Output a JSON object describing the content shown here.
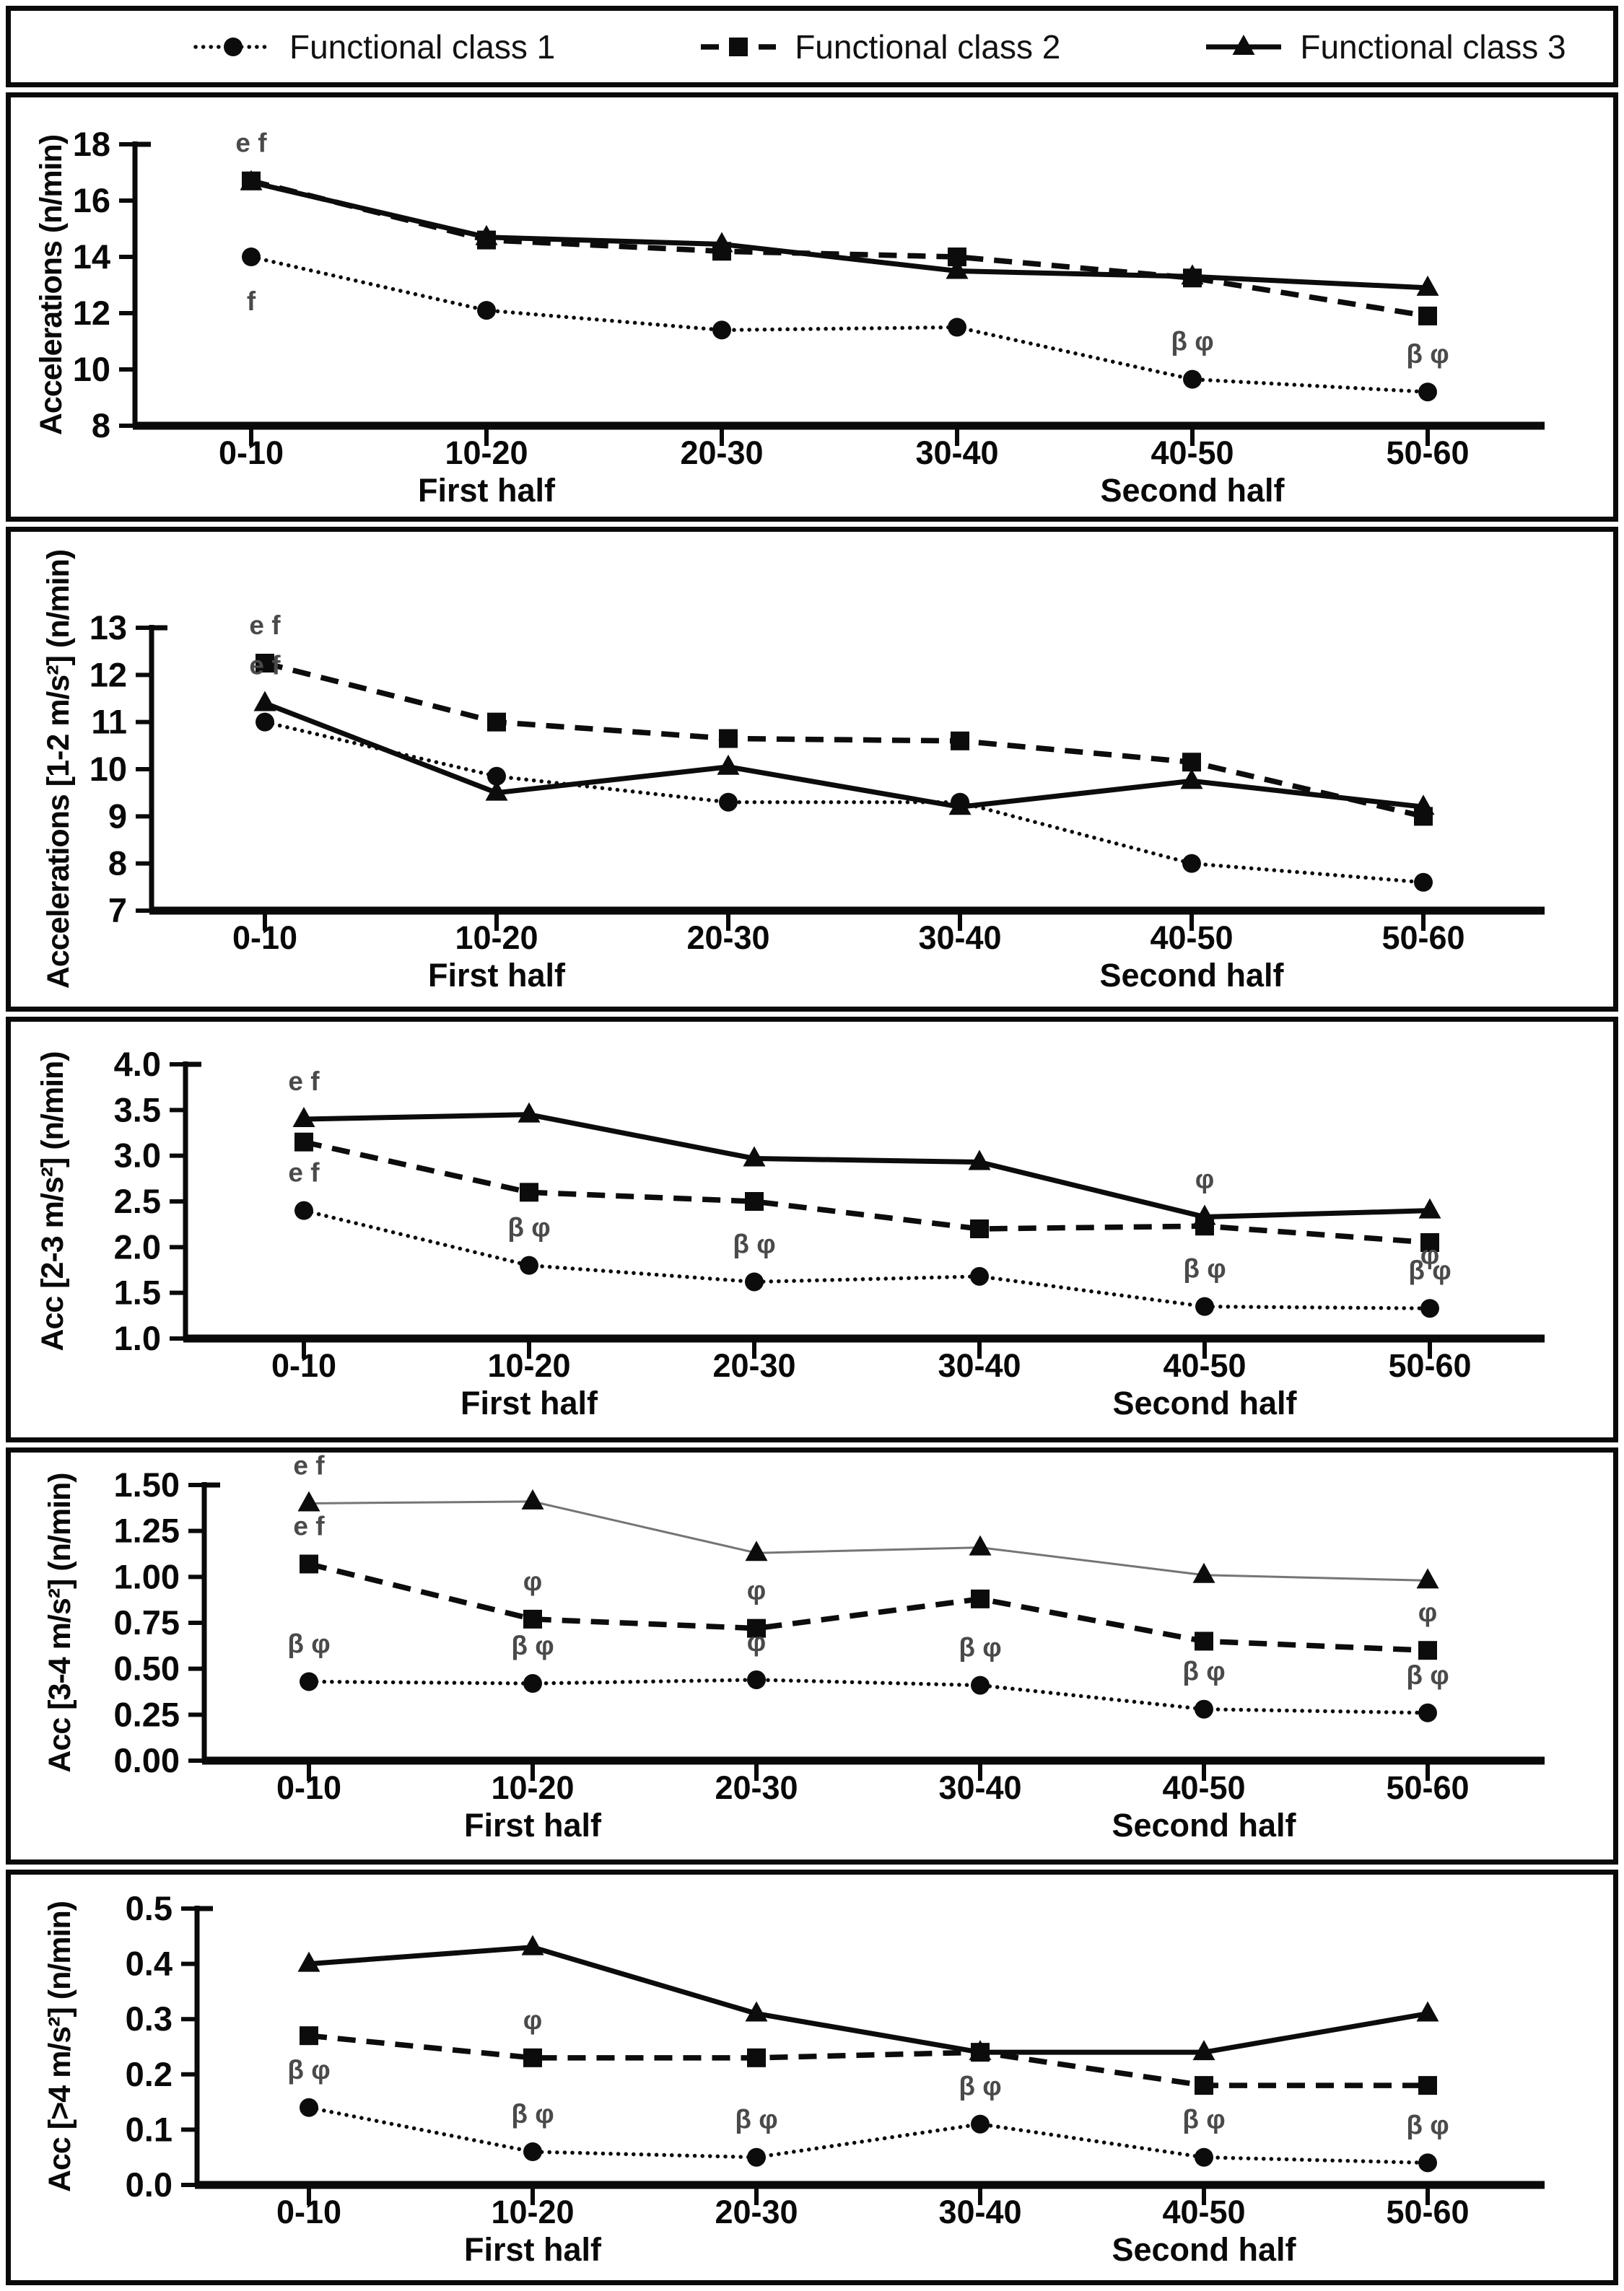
{
  "legend": {
    "items": [
      {
        "label": "Functional class 1",
        "marker": "circle",
        "line": "dotted"
      },
      {
        "label": "Functional class 2",
        "marker": "square",
        "line": "dashed"
      },
      {
        "label": "Functional class 3",
        "marker": "triangle",
        "line": "solid"
      }
    ]
  },
  "chart_data": [
    {
      "type": "line",
      "title": "",
      "ylabel": "Accelerations (n/min)",
      "ylim": [
        8,
        18
      ],
      "ytick_step": 2,
      "yticks": [
        "8",
        "10",
        "12",
        "14",
        "16",
        "18"
      ],
      "grid": false,
      "legend_position": "top-outside",
      "categories": [
        "0-10",
        "10-20",
        "20-30",
        "30-40",
        "40-50",
        "50-60"
      ],
      "xlabel_first": "First half",
      "xlabel_second": "Second half",
      "series": [
        {
          "name": "Functional class 1",
          "marker": "circle",
          "line": "dotted",
          "values": [
            14.0,
            12.1,
            11.4,
            11.5,
            9.65,
            9.2
          ]
        },
        {
          "name": "Functional class 2",
          "marker": "square",
          "line": "dashed",
          "values": [
            16.7,
            14.6,
            14.2,
            14.0,
            13.25,
            11.9
          ]
        },
        {
          "name": "Functional class 3",
          "marker": "triangle",
          "line": "solid",
          "values": [
            16.65,
            14.7,
            14.45,
            13.5,
            13.3,
            12.9
          ]
        }
      ],
      "annotations": [
        {
          "series": 1,
          "index": 0,
          "text": "e f",
          "pos": "above"
        },
        {
          "series": 0,
          "index": 0,
          "text": "f",
          "pos": "below"
        },
        {
          "series": 0,
          "index": 4,
          "text": "β φ",
          "pos": "above"
        },
        {
          "series": 0,
          "index": 5,
          "text": "β φ",
          "pos": "above"
        }
      ]
    },
    {
      "type": "line",
      "title": "",
      "ylabel": "Accelerations [1-2 m/s²] (n/min)",
      "ylim": [
        7,
        13
      ],
      "ytick_step": 1,
      "yticks": [
        "7",
        "8",
        "9",
        "10",
        "11",
        "12",
        "13"
      ],
      "grid": false,
      "legend_position": "top-outside",
      "categories": [
        "0-10",
        "10-20",
        "20-30",
        "30-40",
        "40-50",
        "50-60"
      ],
      "xlabel_first": "First half",
      "xlabel_second": "Second half",
      "series": [
        {
          "name": "Functional class 1",
          "marker": "circle",
          "line": "dotted",
          "values": [
            11.0,
            9.85,
            9.3,
            9.3,
            8.0,
            7.6
          ]
        },
        {
          "name": "Functional class 2",
          "marker": "square",
          "line": "dashed",
          "values": [
            12.25,
            11.0,
            10.65,
            10.6,
            10.15,
            9.0
          ]
        },
        {
          "name": "Functional class 3",
          "marker": "triangle",
          "line": "solid",
          "values": [
            11.4,
            9.5,
            10.05,
            9.2,
            9.75,
            9.2
          ]
        }
      ],
      "annotations": [
        {
          "series": 1,
          "index": 0,
          "text": "e f",
          "pos": "above"
        },
        {
          "series": 2,
          "index": 0,
          "text": "e f",
          "pos": "above"
        }
      ]
    },
    {
      "type": "line",
      "title": "",
      "ylabel": "Acc [2-3 m/s²] (n/min)",
      "ylim": [
        1.0,
        4.0
      ],
      "ytick_step": 0.5,
      "yticks": [
        "1.0",
        "1.5",
        "2.0",
        "2.5",
        "3.0",
        "3.5",
        "4.0"
      ],
      "grid": false,
      "legend_position": "top-outside",
      "categories": [
        "0-10",
        "10-20",
        "20-30",
        "30-40",
        "40-50",
        "50-60"
      ],
      "xlabel_first": "First half",
      "xlabel_second": "Second half",
      "series": [
        {
          "name": "Functional class 1",
          "marker": "circle",
          "line": "dotted",
          "values": [
            2.4,
            1.8,
            1.62,
            1.68,
            1.35,
            1.33
          ]
        },
        {
          "name": "Functional class 2",
          "marker": "square",
          "line": "dashed",
          "values": [
            3.15,
            2.6,
            2.5,
            2.2,
            2.23,
            2.05
          ]
        },
        {
          "name": "Functional class 3",
          "marker": "triangle",
          "line": "solid",
          "values": [
            3.4,
            3.45,
            2.97,
            2.93,
            2.33,
            2.4
          ]
        }
      ],
      "annotations": [
        {
          "series": 2,
          "index": 0,
          "text": "e f",
          "pos": "above"
        },
        {
          "series": 0,
          "index": 0,
          "text": "e f",
          "pos": "above"
        },
        {
          "series": 0,
          "index": 1,
          "text": "β φ",
          "pos": "above"
        },
        {
          "series": 0,
          "index": 2,
          "text": "β φ",
          "pos": "above"
        },
        {
          "series": 2,
          "index": 4,
          "text": "φ",
          "pos": "above"
        },
        {
          "series": 0,
          "index": 4,
          "text": "β φ",
          "pos": "above"
        },
        {
          "series": 0,
          "index": 5,
          "text": "β φ",
          "pos": "above"
        },
        {
          "series": 2,
          "index": 5,
          "text": "φ",
          "pos": "below"
        }
      ]
    },
    {
      "type": "line",
      "title": "",
      "ylabel": "Acc [3-4 m/s²] (n/min)",
      "ylim": [
        0.0,
        1.5
      ],
      "ytick_step": 0.25,
      "yticks": [
        "0.00",
        "0.25",
        "0.50",
        "0.75",
        "1.00",
        "1.25",
        "1.50"
      ],
      "grid": false,
      "legend_position": "top-outside",
      "categories": [
        "0-10",
        "10-20",
        "20-30",
        "30-40",
        "40-50",
        "50-60"
      ],
      "xlabel_first": "First half",
      "xlabel_second": "Second half",
      "series": [
        {
          "name": "Functional class 1",
          "marker": "circle",
          "line": "dotted",
          "values": [
            0.43,
            0.42,
            0.44,
            0.41,
            0.28,
            0.26
          ]
        },
        {
          "name": "Functional class 2",
          "marker": "square",
          "line": "dashed",
          "values": [
            1.07,
            0.77,
            0.72,
            0.88,
            0.65,
            0.6
          ]
        },
        {
          "name": "Functional class 3",
          "marker": "triangle",
          "line": "solid",
          "values": [
            1.4,
            1.41,
            1.13,
            1.16,
            1.01,
            0.98
          ],
          "color": "#757575",
          "line_width": 3
        }
      ],
      "annotations": [
        {
          "series": 2,
          "index": 0,
          "text": "e f",
          "pos": "above"
        },
        {
          "series": 1,
          "index": 0,
          "text": "e f",
          "pos": "above"
        },
        {
          "series": 1,
          "index": 1,
          "text": "φ",
          "pos": "above"
        },
        {
          "series": 1,
          "index": 2,
          "text": "φ",
          "pos": "above"
        },
        {
          "series": 1,
          "index": 5,
          "text": "φ",
          "pos": "above"
        },
        {
          "series": 0,
          "index": 0,
          "text": "β φ",
          "pos": "above"
        },
        {
          "series": 0,
          "index": 1,
          "text": "β φ",
          "pos": "above"
        },
        {
          "series": 0,
          "index": 2,
          "text": "φ",
          "pos": "above"
        },
        {
          "series": 0,
          "index": 3,
          "text": "β φ",
          "pos": "above"
        },
        {
          "series": 0,
          "index": 4,
          "text": "β φ",
          "pos": "above"
        },
        {
          "series": 0,
          "index": 5,
          "text": "β φ",
          "pos": "above"
        }
      ]
    },
    {
      "type": "line",
      "title": "",
      "ylabel": "Acc [>4 m/s²] (n/min)",
      "ylim": [
        0.0,
        0.5
      ],
      "ytick_step": 0.1,
      "yticks": [
        "0.0",
        "0.1",
        "0.2",
        "0.3",
        "0.4",
        "0.5"
      ],
      "grid": false,
      "legend_position": "top-outside",
      "categories": [
        "0-10",
        "10-20",
        "20-30",
        "30-40",
        "40-50",
        "50-60"
      ],
      "xlabel_first": "First half",
      "xlabel_second": "Second half",
      "series": [
        {
          "name": "Functional class 1",
          "marker": "circle",
          "line": "dotted",
          "values": [
            0.14,
            0.06,
            0.05,
            0.11,
            0.05,
            0.04
          ]
        },
        {
          "name": "Functional class 2",
          "marker": "square",
          "line": "dashed",
          "values": [
            0.27,
            0.23,
            0.23,
            0.24,
            0.18,
            0.18
          ]
        },
        {
          "name": "Functional class 3",
          "marker": "triangle",
          "line": "solid",
          "values": [
            0.4,
            0.43,
            0.31,
            0.24,
            0.24,
            0.31
          ]
        }
      ],
      "annotations": [
        {
          "series": 1,
          "index": 1,
          "text": "φ",
          "pos": "above"
        },
        {
          "series": 0,
          "index": 0,
          "text": "β φ",
          "pos": "above"
        },
        {
          "series": 0,
          "index": 1,
          "text": "β φ",
          "pos": "above"
        },
        {
          "series": 0,
          "index": 2,
          "text": "β φ",
          "pos": "above"
        },
        {
          "series": 0,
          "index": 3,
          "text": "β φ",
          "pos": "above"
        },
        {
          "series": 0,
          "index": 4,
          "text": "β φ",
          "pos": "above"
        },
        {
          "series": 0,
          "index": 5,
          "text": "β φ",
          "pos": "above"
        }
      ]
    }
  ],
  "colors": {
    "line_default": "#0c0c0c",
    "annotation": "#4a4a4a",
    "axis": "#0a0a0a"
  }
}
